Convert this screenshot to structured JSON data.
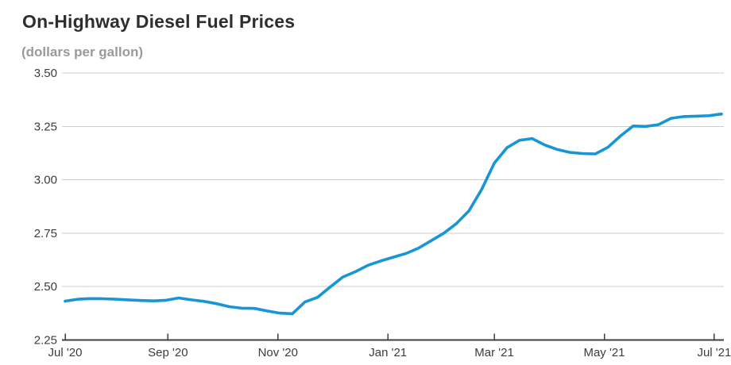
{
  "header": {
    "title": "On-Highway Diesel Fuel Prices",
    "subtitle": "(dollars per gallon)"
  },
  "colors": {
    "line": "#1795d4",
    "grid": "#cdcdcd",
    "axis": "#3f3f3f",
    "title_text": "#2e2e2e",
    "subtitle_text": "#9a9a9a",
    "tick_text": "#3c3c3c",
    "background": "#ffffff"
  },
  "chart_data": {
    "type": "line",
    "title": "On-Highway Diesel Fuel Prices",
    "ylabel": "dollars per gallon",
    "xlabel": "",
    "grid": true,
    "legend": false,
    "ylim": [
      2.25,
      3.5
    ],
    "y_axis": {
      "min": 2.25,
      "max": 3.5,
      "tick_interval": 0.25,
      "ticks": [
        {
          "value": 2.25,
          "label": "2.25"
        },
        {
          "value": 2.5,
          "label": "2.50"
        },
        {
          "value": 2.75,
          "label": "2.75"
        },
        {
          "value": 3.0,
          "label": "3.00"
        },
        {
          "value": 3.25,
          "label": "3.25"
        },
        {
          "value": 3.5,
          "label": "3.50"
        }
      ]
    },
    "x_axis": {
      "ticks": [
        {
          "label": "Jul '20",
          "date": "2020-07-06"
        },
        {
          "label": "Sep '20",
          "date": "2020-09-01"
        },
        {
          "label": "Nov '20",
          "date": "2020-11-01"
        },
        {
          "label": "Jan '21",
          "date": "2021-01-01"
        },
        {
          "label": "Mar '21",
          "date": "2021-03-01"
        },
        {
          "label": "May '21",
          "date": "2021-05-01"
        },
        {
          "label": "Jul '21",
          "date": "2021-07-01"
        }
      ]
    },
    "series": [
      {
        "name": "On-Highway Diesel Fuel Price",
        "color": "#1795d4",
        "points": [
          {
            "date": "2020-07-06",
            "value": 2.432
          },
          {
            "date": "2020-07-13",
            "value": 2.441
          },
          {
            "date": "2020-07-20",
            "value": 2.444
          },
          {
            "date": "2020-07-27",
            "value": 2.443
          },
          {
            "date": "2020-08-03",
            "value": 2.441
          },
          {
            "date": "2020-08-10",
            "value": 2.438
          },
          {
            "date": "2020-08-17",
            "value": 2.435
          },
          {
            "date": "2020-08-24",
            "value": 2.433
          },
          {
            "date": "2020-08-31",
            "value": 2.436
          },
          {
            "date": "2020-09-07",
            "value": 2.447
          },
          {
            "date": "2020-09-14",
            "value": 2.438
          },
          {
            "date": "2020-09-21",
            "value": 2.431
          },
          {
            "date": "2020-09-28",
            "value": 2.42
          },
          {
            "date": "2020-10-05",
            "value": 2.406
          },
          {
            "date": "2020-10-12",
            "value": 2.399
          },
          {
            "date": "2020-10-19",
            "value": 2.398
          },
          {
            "date": "2020-10-26",
            "value": 2.386
          },
          {
            "date": "2020-11-02",
            "value": 2.376
          },
          {
            "date": "2020-11-09",
            "value": 2.373
          },
          {
            "date": "2020-11-16",
            "value": 2.428
          },
          {
            "date": "2020-11-23",
            "value": 2.45
          },
          {
            "date": "2020-11-30",
            "value": 2.498
          },
          {
            "date": "2020-12-07",
            "value": 2.545
          },
          {
            "date": "2020-12-14",
            "value": 2.57
          },
          {
            "date": "2020-12-21",
            "value": 2.6
          },
          {
            "date": "2020-12-28",
            "value": 2.62
          },
          {
            "date": "2021-01-04",
            "value": 2.638
          },
          {
            "date": "2021-01-11",
            "value": 2.655
          },
          {
            "date": "2021-01-18",
            "value": 2.68
          },
          {
            "date": "2021-01-25",
            "value": 2.715
          },
          {
            "date": "2021-02-01",
            "value": 2.75
          },
          {
            "date": "2021-02-08",
            "value": 2.795
          },
          {
            "date": "2021-02-15",
            "value": 2.855
          },
          {
            "date": "2021-02-22",
            "value": 2.955
          },
          {
            "date": "2021-03-01",
            "value": 3.078
          },
          {
            "date": "2021-03-08",
            "value": 3.15
          },
          {
            "date": "2021-03-15",
            "value": 3.185
          },
          {
            "date": "2021-03-22",
            "value": 3.193
          },
          {
            "date": "2021-03-29",
            "value": 3.163
          },
          {
            "date": "2021-04-05",
            "value": 3.142
          },
          {
            "date": "2021-04-12",
            "value": 3.128
          },
          {
            "date": "2021-04-19",
            "value": 3.123
          },
          {
            "date": "2021-04-26",
            "value": 3.121
          },
          {
            "date": "2021-05-03",
            "value": 3.152
          },
          {
            "date": "2021-05-10",
            "value": 3.205
          },
          {
            "date": "2021-05-17",
            "value": 3.252
          },
          {
            "date": "2021-05-24",
            "value": 3.25
          },
          {
            "date": "2021-05-31",
            "value": 3.258
          },
          {
            "date": "2021-06-07",
            "value": 3.288
          },
          {
            "date": "2021-06-14",
            "value": 3.296
          },
          {
            "date": "2021-06-21",
            "value": 3.298
          },
          {
            "date": "2021-06-28",
            "value": 3.3
          },
          {
            "date": "2021-07-05",
            "value": 3.308
          }
        ]
      }
    ]
  }
}
